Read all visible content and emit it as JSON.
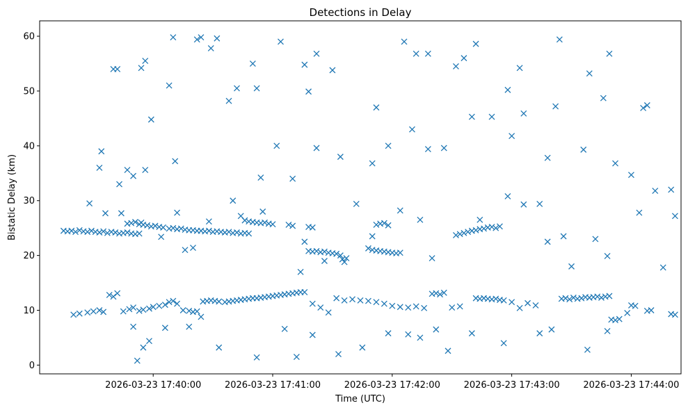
{
  "chart_data": {
    "type": "scatter",
    "title": "Detections in Delay",
    "xlabel": "Time (UTC)",
    "ylabel": "Bistatic Delay (km)",
    "marker": "x",
    "color": "#1f77b4",
    "grid": false,
    "x_axis": {
      "kind": "time",
      "range": [
        "2026-03-23 17:39:03",
        "2026-03-23 17:44:25"
      ],
      "ticks": [
        {
          "value": "2026-03-23 17:40:00",
          "label": "2026-03-23 17:40:00"
        },
        {
          "value": "2026-03-23 17:41:00",
          "label": "2026-03-23 17:41:00"
        },
        {
          "value": "2026-03-23 17:42:00",
          "label": "2026-03-23 17:42:00"
        },
        {
          "value": "2026-03-23 17:43:00",
          "label": "2026-03-23 17:43:00"
        },
        {
          "value": "2026-03-23 17:44:00",
          "label": "2026-03-23 17:44:00"
        }
      ]
    },
    "y_axis": {
      "range": [
        -1.6,
        62.8
      ],
      "ticks": [
        {
          "value": 0,
          "label": "0"
        },
        {
          "value": 10,
          "label": "10"
        },
        {
          "value": 20,
          "label": "20"
        },
        {
          "value": 30,
          "label": "30"
        },
        {
          "value": 40,
          "label": "40"
        },
        {
          "value": 50,
          "label": "50"
        },
        {
          "value": 60,
          "label": "60"
        }
      ]
    },
    "points": [
      [
        "17:39:15",
        24.5
      ],
      [
        "17:39:17",
        24.4
      ],
      [
        "17:39:19",
        24.5
      ],
      [
        "17:39:21",
        24.3
      ],
      [
        "17:39:23",
        24.6
      ],
      [
        "17:39:25",
        24.4
      ],
      [
        "17:39:27",
        24.3
      ],
      [
        "17:39:29",
        24.5
      ],
      [
        "17:39:31",
        24.3
      ],
      [
        "17:39:33",
        24.2
      ],
      [
        "17:39:35",
        24.4
      ],
      [
        "17:39:37",
        24.1
      ],
      [
        "17:39:39",
        24.3
      ],
      [
        "17:39:41",
        24.2
      ],
      [
        "17:39:43",
        24.0
      ],
      [
        "17:39:45",
        24.1
      ],
      [
        "17:39:47",
        24.2
      ],
      [
        "17:39:49",
        24.0
      ],
      [
        "17:39:51",
        23.9
      ],
      [
        "17:39:53",
        24.0
      ],
      [
        "17:39:47",
        25.8
      ],
      [
        "17:39:49",
        25.9
      ],
      [
        "17:39:51",
        26.1
      ],
      [
        "17:39:53",
        25.7
      ],
      [
        "17:39:55",
        25.6
      ],
      [
        "17:39:57",
        25.5
      ],
      [
        "17:39:59",
        25.3
      ],
      [
        "17:40:01",
        25.4
      ],
      [
        "17:40:03",
        25.2
      ],
      [
        "17:40:05",
        25.1
      ],
      [
        "17:40:08",
        24.9
      ],
      [
        "17:40:10",
        25.0
      ],
      [
        "17:40:12",
        24.8
      ],
      [
        "17:40:14",
        24.9
      ],
      [
        "17:40:16",
        24.7
      ],
      [
        "17:40:18",
        24.6
      ],
      [
        "17:40:20",
        24.6
      ],
      [
        "17:40:22",
        24.5
      ],
      [
        "17:40:24",
        24.5
      ],
      [
        "17:40:26",
        24.4
      ],
      [
        "17:40:28",
        24.5
      ],
      [
        "17:40:30",
        24.3
      ],
      [
        "17:40:32",
        24.4
      ],
      [
        "17:40:34",
        24.3
      ],
      [
        "17:40:36",
        24.2
      ],
      [
        "17:40:38",
        24.3
      ],
      [
        "17:40:40",
        24.1
      ],
      [
        "17:40:42",
        24.2
      ],
      [
        "17:40:44",
        24.0
      ],
      [
        "17:40:46",
        24.1
      ],
      [
        "17:40:48",
        24.0
      ],
      [
        "17:40:46",
        26.4
      ],
      [
        "17:40:48",
        26.2
      ],
      [
        "17:40:50",
        26.1
      ],
      [
        "17:40:52",
        26.0
      ],
      [
        "17:40:54",
        25.9
      ],
      [
        "17:40:56",
        26.0
      ],
      [
        "17:40:58",
        25.8
      ],
      [
        "17:41:00",
        25.7
      ],
      [
        "17:41:08",
        25.6
      ],
      [
        "17:41:10",
        25.4
      ],
      [
        "17:41:18",
        25.2
      ],
      [
        "17:41:20",
        25.1
      ],
      [
        "17:41:18",
        20.8
      ],
      [
        "17:41:20",
        20.7
      ],
      [
        "17:41:22",
        20.8
      ],
      [
        "17:41:24",
        20.6
      ],
      [
        "17:41:26",
        20.7
      ],
      [
        "17:41:28",
        20.5
      ],
      [
        "17:41:30",
        20.4
      ],
      [
        "17:41:32",
        20.3
      ],
      [
        "17:41:34",
        20.0
      ],
      [
        "17:41:35",
        19.3
      ],
      [
        "17:41:36",
        18.8
      ],
      [
        "17:41:37",
        19.5
      ],
      [
        "17:41:48",
        21.3
      ],
      [
        "17:41:50",
        21.0
      ],
      [
        "17:41:52",
        20.9
      ],
      [
        "17:41:54",
        20.8
      ],
      [
        "17:41:56",
        20.7
      ],
      [
        "17:41:58",
        20.6
      ],
      [
        "17:42:00",
        20.5
      ],
      [
        "17:42:02",
        20.4
      ],
      [
        "17:42:04",
        20.5
      ],
      [
        "17:41:52",
        25.6
      ],
      [
        "17:41:54",
        25.8
      ],
      [
        "17:41:56",
        25.9
      ],
      [
        "17:41:58",
        25.5
      ],
      [
        "17:42:32",
        23.7
      ],
      [
        "17:42:34",
        23.9
      ],
      [
        "17:42:36",
        24.1
      ],
      [
        "17:42:38",
        24.3
      ],
      [
        "17:42:40",
        24.5
      ],
      [
        "17:42:42",
        24.6
      ],
      [
        "17:42:44",
        24.8
      ],
      [
        "17:42:46",
        24.9
      ],
      [
        "17:42:48",
        25.1
      ],
      [
        "17:42:50",
        25.2
      ],
      [
        "17:42:52",
        25.0
      ],
      [
        "17:42:54",
        25.3
      ],
      [
        "17:39:20",
        9.2
      ],
      [
        "17:39:23",
        9.4
      ],
      [
        "17:39:27",
        9.6
      ],
      [
        "17:39:30",
        9.8
      ],
      [
        "17:39:33",
        10.0
      ],
      [
        "17:39:35",
        9.7
      ],
      [
        "17:39:38",
        12.8
      ],
      [
        "17:39:40",
        12.5
      ],
      [
        "17:39:42",
        13.1
      ],
      [
        "17:39:45",
        9.8
      ],
      [
        "17:39:48",
        10.2
      ],
      [
        "17:39:50",
        10.5
      ],
      [
        "17:39:53",
        9.9
      ],
      [
        "17:39:55",
        10.1
      ],
      [
        "17:39:58",
        10.3
      ],
      [
        "17:40:00",
        10.6
      ],
      [
        "17:40:03",
        10.8
      ],
      [
        "17:40:06",
        11.0
      ],
      [
        "17:40:08",
        11.5
      ],
      [
        "17:40:10",
        11.7
      ],
      [
        "17:40:12",
        11.2
      ],
      [
        "17:40:15",
        10.0
      ],
      [
        "17:40:18",
        9.9
      ],
      [
        "17:40:20",
        9.7
      ],
      [
        "17:40:22",
        9.8
      ],
      [
        "17:40:24",
        8.8
      ],
      [
        "17:40:25",
        11.6
      ],
      [
        "17:40:27",
        11.7
      ],
      [
        "17:40:29",
        11.8
      ],
      [
        "17:40:31",
        11.7
      ],
      [
        "17:40:33",
        11.6
      ],
      [
        "17:40:36",
        11.5
      ],
      [
        "17:40:38",
        11.6
      ],
      [
        "17:40:40",
        11.7
      ],
      [
        "17:40:42",
        11.8
      ],
      [
        "17:40:44",
        11.9
      ],
      [
        "17:40:46",
        12.0
      ],
      [
        "17:40:48",
        12.1
      ],
      [
        "17:40:50",
        12.2
      ],
      [
        "17:40:52",
        12.2
      ],
      [
        "17:40:54",
        12.3
      ],
      [
        "17:40:56",
        12.4
      ],
      [
        "17:40:58",
        12.5
      ],
      [
        "17:41:00",
        12.6
      ],
      [
        "17:41:02",
        12.7
      ],
      [
        "17:41:04",
        12.8
      ],
      [
        "17:41:06",
        12.9
      ],
      [
        "17:41:08",
        13.0
      ],
      [
        "17:41:10",
        13.1
      ],
      [
        "17:41:12",
        13.2
      ],
      [
        "17:41:14",
        13.3
      ],
      [
        "17:41:16",
        13.3
      ],
      [
        "17:41:20",
        11.2
      ],
      [
        "17:41:24",
        10.5
      ],
      [
        "17:41:28",
        9.6
      ],
      [
        "17:41:32",
        12.2
      ],
      [
        "17:41:36",
        11.8
      ],
      [
        "17:41:40",
        12.0
      ],
      [
        "17:41:44",
        11.8
      ],
      [
        "17:41:48",
        11.7
      ],
      [
        "17:41:52",
        11.5
      ],
      [
        "17:41:56",
        11.2
      ],
      [
        "17:42:00",
        10.8
      ],
      [
        "17:42:04",
        10.6
      ],
      [
        "17:42:08",
        10.5
      ],
      [
        "17:42:12",
        10.7
      ],
      [
        "17:42:16",
        10.4
      ],
      [
        "17:42:20",
        13.0
      ],
      [
        "17:42:22",
        13.1
      ],
      [
        "17:42:24",
        12.9
      ],
      [
        "17:42:26",
        13.2
      ],
      [
        "17:42:30",
        10.5
      ],
      [
        "17:42:34",
        10.7
      ],
      [
        "17:42:42",
        12.2
      ],
      [
        "17:42:44",
        12.1
      ],
      [
        "17:42:46",
        12.2
      ],
      [
        "17:42:48",
        12.1
      ],
      [
        "17:42:50",
        12.0
      ],
      [
        "17:42:52",
        12.1
      ],
      [
        "17:42:54",
        11.9
      ],
      [
        "17:42:56",
        11.8
      ],
      [
        "17:43:00",
        11.5
      ],
      [
        "17:43:04",
        10.4
      ],
      [
        "17:43:08",
        11.3
      ],
      [
        "17:43:12",
        10.9
      ],
      [
        "17:43:25",
        12.1
      ],
      [
        "17:43:27",
        12.2
      ],
      [
        "17:43:29",
        12.0
      ],
      [
        "17:43:31",
        12.3
      ],
      [
        "17:43:33",
        12.1
      ],
      [
        "17:43:35",
        12.2
      ],
      [
        "17:43:37",
        12.4
      ],
      [
        "17:43:39",
        12.3
      ],
      [
        "17:43:41",
        12.4
      ],
      [
        "17:43:43",
        12.5
      ],
      [
        "17:43:45",
        12.3
      ],
      [
        "17:43:47",
        12.5
      ],
      [
        "17:43:49",
        12.6
      ],
      [
        "17:43:50",
        8.3
      ],
      [
        "17:43:52",
        8.2
      ],
      [
        "17:43:54",
        8.4
      ],
      [
        "17:43:58",
        9.5
      ],
      [
        "17:44:00",
        10.9
      ],
      [
        "17:44:02",
        10.8
      ],
      [
        "17:44:08",
        9.9
      ],
      [
        "17:44:10",
        10.0
      ],
      [
        "17:44:20",
        9.3
      ],
      [
        "17:44:22",
        9.2
      ],
      [
        "17:39:34",
        39.0
      ],
      [
        "17:39:40",
        54.0
      ],
      [
        "17:39:42",
        54.0
      ],
      [
        "17:39:54",
        54.2
      ],
      [
        "17:39:56",
        55.5
      ],
      [
        "17:39:59",
        44.8
      ],
      [
        "17:40:08",
        51.0
      ],
      [
        "17:40:10",
        59.8
      ],
      [
        "17:40:22",
        59.4
      ],
      [
        "17:40:24",
        59.8
      ],
      [
        "17:40:29",
        57.8
      ],
      [
        "17:40:32",
        59.6
      ],
      [
        "17:40:38",
        48.2
      ],
      [
        "17:40:42",
        50.5
      ],
      [
        "17:40:50",
        55.0
      ],
      [
        "17:40:52",
        50.5
      ],
      [
        "17:41:04",
        59.0
      ],
      [
        "17:41:16",
        54.8
      ],
      [
        "17:41:18",
        49.9
      ],
      [
        "17:41:22",
        56.8
      ],
      [
        "17:41:30",
        53.8
      ],
      [
        "17:41:52",
        47.0
      ],
      [
        "17:42:06",
        59.0
      ],
      [
        "17:42:12",
        56.8
      ],
      [
        "17:42:18",
        56.8
      ],
      [
        "17:42:32",
        54.5
      ],
      [
        "17:42:36",
        56.0
      ],
      [
        "17:42:42",
        58.6
      ],
      [
        "17:42:58",
        50.2
      ],
      [
        "17:43:04",
        54.2
      ],
      [
        "17:43:24",
        59.4
      ],
      [
        "17:43:39",
        53.2
      ],
      [
        "17:43:46",
        48.7
      ],
      [
        "17:43:49",
        56.8
      ],
      [
        "17:44:06",
        46.9
      ],
      [
        "17:39:28",
        29.5
      ],
      [
        "17:39:33",
        36.0
      ],
      [
        "17:39:43",
        33.0
      ],
      [
        "17:39:47",
        35.6
      ],
      [
        "17:39:50",
        34.5
      ],
      [
        "17:39:56",
        35.6
      ],
      [
        "17:40:11",
        37.2
      ],
      [
        "17:40:40",
        30.0
      ],
      [
        "17:40:54",
        34.2
      ],
      [
        "17:41:02",
        40.0
      ],
      [
        "17:41:10",
        34.0
      ],
      [
        "17:41:22",
        39.6
      ],
      [
        "17:41:34",
        38.0
      ],
      [
        "17:41:50",
        36.8
      ],
      [
        "17:41:58",
        40.0
      ],
      [
        "17:42:10",
        43.0
      ],
      [
        "17:42:18",
        39.4
      ],
      [
        "17:42:26",
        39.6
      ],
      [
        "17:42:40",
        45.3
      ],
      [
        "17:42:50",
        45.3
      ],
      [
        "17:43:00",
        41.8
      ],
      [
        "17:43:06",
        45.9
      ],
      [
        "17:43:18",
        37.8
      ],
      [
        "17:43:22",
        47.2
      ],
      [
        "17:43:36",
        39.3
      ],
      [
        "17:43:52",
        36.8
      ],
      [
        "17:44:00",
        34.7
      ],
      [
        "17:44:08",
        47.4
      ],
      [
        "17:44:12",
        31.8
      ],
      [
        "17:44:20",
        32.0
      ],
      [
        "17:39:50",
        7.0
      ],
      [
        "17:39:52",
        0.8
      ],
      [
        "17:39:55",
        3.2
      ],
      [
        "17:39:58",
        4.4
      ],
      [
        "17:40:06",
        6.8
      ],
      [
        "17:40:18",
        7.0
      ],
      [
        "17:40:33",
        3.2
      ],
      [
        "17:40:52",
        1.4
      ],
      [
        "17:41:06",
        6.6
      ],
      [
        "17:41:12",
        1.5
      ],
      [
        "17:41:20",
        5.5
      ],
      [
        "17:41:33",
        2.0
      ],
      [
        "17:41:45",
        3.2
      ],
      [
        "17:41:58",
        5.8
      ],
      [
        "17:42:08",
        5.6
      ],
      [
        "17:42:14",
        5.0
      ],
      [
        "17:42:22",
        6.5
      ],
      [
        "17:42:28",
        2.6
      ],
      [
        "17:42:40",
        5.8
      ],
      [
        "17:42:56",
        4.0
      ],
      [
        "17:43:14",
        5.8
      ],
      [
        "17:43:20",
        6.5
      ],
      [
        "17:43:38",
        2.8
      ],
      [
        "17:43:48",
        6.2
      ],
      [
        "17:39:36",
        27.7
      ],
      [
        "17:39:44",
        27.7
      ],
      [
        "17:39:54",
        26.0
      ],
      [
        "17:40:04",
        23.4
      ],
      [
        "17:40:12",
        27.8
      ],
      [
        "17:40:16",
        21.0
      ],
      [
        "17:40:20",
        21.4
      ],
      [
        "17:40:28",
        26.2
      ],
      [
        "17:40:44",
        27.2
      ],
      [
        "17:40:55",
        28.0
      ],
      [
        "17:41:14",
        17.0
      ],
      [
        "17:41:16",
        22.5
      ],
      [
        "17:41:26",
        19.0
      ],
      [
        "17:41:42",
        29.4
      ],
      [
        "17:41:50",
        23.5
      ],
      [
        "17:42:04",
        28.2
      ],
      [
        "17:42:14",
        26.5
      ],
      [
        "17:42:20",
        19.5
      ],
      [
        "17:42:44",
        26.5
      ],
      [
        "17:42:58",
        30.8
      ],
      [
        "17:43:06",
        29.3
      ],
      [
        "17:43:14",
        29.4
      ],
      [
        "17:43:18",
        22.5
      ],
      [
        "17:43:26",
        23.5
      ],
      [
        "17:43:30",
        18.0
      ],
      [
        "17:43:42",
        23.0
      ],
      [
        "17:43:48",
        19.9
      ],
      [
        "17:44:04",
        27.8
      ],
      [
        "17:44:16",
        17.8
      ],
      [
        "17:44:22",
        27.2
      ]
    ]
  }
}
